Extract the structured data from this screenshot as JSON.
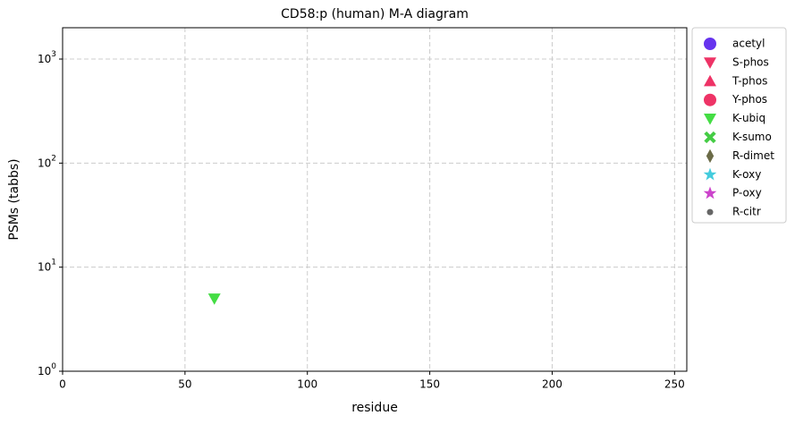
{
  "chart_data": {
    "type": "scatter",
    "title": "CD58:p (human) M-A diagram",
    "x_label": "residue",
    "y_label": "PSMs (tabbs)",
    "xlim": [
      0,
      255
    ],
    "xticks": [
      0,
      50,
      100,
      150,
      200,
      250
    ],
    "ylim": [
      1,
      2000
    ],
    "log_y": true,
    "yticks": [
      {
        "value": 1,
        "label": "10^0"
      },
      {
        "value": 10,
        "label": "10^1"
      },
      {
        "value": 100,
        "label": "10^2"
      },
      {
        "value": 1000,
        "label": "10^3"
      }
    ],
    "grid": true,
    "legend": "outside-right",
    "series": [
      {
        "name": "acetyl",
        "color": "#6633ee",
        "marker": "circle",
        "x": [],
        "values": []
      },
      {
        "name": "S-phos",
        "color": "#ee3366",
        "marker": "triangle-down",
        "x": [],
        "values": []
      },
      {
        "name": "T-phos",
        "color": "#ee3366",
        "marker": "triangle-up",
        "x": [],
        "values": []
      },
      {
        "name": "Y-phos",
        "color": "#ee3366",
        "marker": "circle",
        "x": [],
        "values": []
      },
      {
        "name": "K-ubiq",
        "color": "#44dd44",
        "marker": "triangle-down",
        "x": [
          62
        ],
        "values": [
          5
        ]
      },
      {
        "name": "K-sumo",
        "color": "#44cc44",
        "marker": "x",
        "x": [],
        "values": []
      },
      {
        "name": "R-dimet",
        "color": "#6b6b47",
        "marker": "diamond",
        "x": [],
        "values": []
      },
      {
        "name": "K-oxy",
        "color": "#44ccdd",
        "marker": "star",
        "x": [],
        "values": []
      },
      {
        "name": "P-oxy",
        "color": "#cc44cc",
        "marker": "star",
        "x": [],
        "values": []
      },
      {
        "name": "R-citr",
        "color": "#666666",
        "marker": "dot",
        "x": [],
        "values": []
      }
    ]
  }
}
